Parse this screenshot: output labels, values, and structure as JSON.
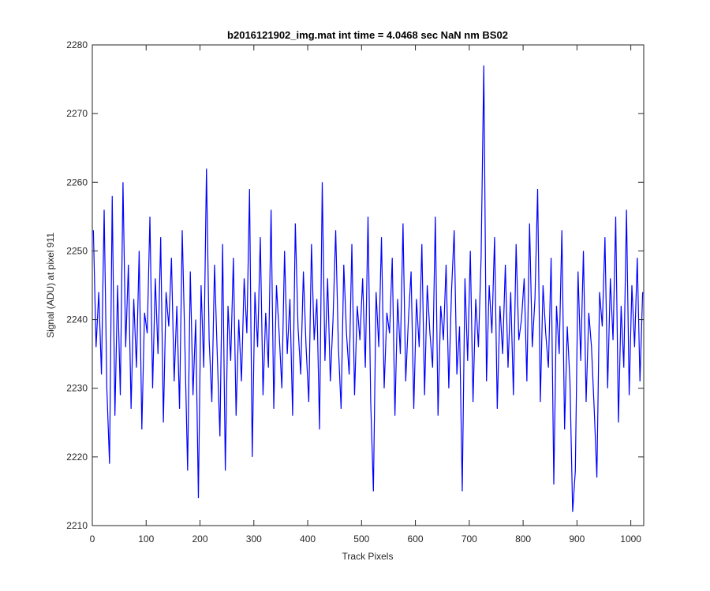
{
  "chart_data": {
    "type": "line",
    "title": "b2016121902_img.mat int time = 4.0468 sec  NaN nm BS02",
    "x_label": "Track Pixels",
    "y_label": "Signal (ADU) at pixel 911",
    "color": "#0000ff",
    "xlim": [
      0,
      1024
    ],
    "xticks": [
      0,
      100,
      200,
      300,
      400,
      500,
      600,
      700,
      800,
      900,
      1000
    ],
    "ylim": [
      2210,
      2280
    ],
    "yticks": [
      2210,
      2220,
      2230,
      2240,
      2250,
      2260,
      2270,
      2280
    ],
    "x": [
      2,
      7,
      12,
      17,
      22,
      27,
      32,
      37,
      42,
      47,
      52,
      57,
      62,
      67,
      72,
      77,
      82,
      87,
      92,
      97,
      102,
      107,
      112,
      117,
      122,
      127,
      132,
      137,
      142,
      147,
      152,
      157,
      162,
      167,
      172,
      177,
      182,
      187,
      192,
      197,
      202,
      207,
      212,
      217,
      222,
      227,
      232,
      237,
      242,
      247,
      252,
      257,
      262,
      267,
      272,
      277,
      282,
      287,
      292,
      297,
      302,
      307,
      312,
      317,
      322,
      327,
      332,
      337,
      342,
      347,
      352,
      357,
      362,
      367,
      372,
      377,
      382,
      387,
      392,
      397,
      402,
      407,
      412,
      417,
      422,
      427,
      432,
      437,
      442,
      447,
      452,
      457,
      462,
      467,
      472,
      477,
      482,
      487,
      492,
      497,
      502,
      507,
      512,
      517,
      522,
      527,
      532,
      537,
      542,
      547,
      552,
      557,
      562,
      567,
      572,
      577,
      582,
      587,
      592,
      597,
      602,
      607,
      612,
      617,
      622,
      627,
      632,
      637,
      642,
      647,
      652,
      657,
      662,
      667,
      672,
      677,
      682,
      687,
      692,
      697,
      702,
      707,
      712,
      717,
      722,
      727,
      732,
      737,
      742,
      747,
      752,
      757,
      762,
      767,
      772,
      777,
      782,
      787,
      792,
      797,
      802,
      807,
      812,
      817,
      822,
      827,
      832,
      837,
      842,
      847,
      852,
      857,
      862,
      867,
      872,
      877,
      882,
      887,
      892,
      897,
      902,
      907,
      912,
      917,
      922,
      927,
      932,
      937,
      942,
      947,
      952,
      957,
      962,
      967,
      972,
      977,
      982,
      987,
      992,
      997,
      1002,
      1007,
      1012,
      1017,
      1022
    ],
    "values": [
      2253,
      2236,
      2244,
      2232,
      2256,
      2230,
      2219,
      2258,
      2226,
      2245,
      2229,
      2260,
      2236,
      2248,
      2227,
      2243,
      2233,
      2250,
      2224,
      2241,
      2238,
      2255,
      2230,
      2246,
      2235,
      2252,
      2225,
      2244,
      2239,
      2249,
      2231,
      2242,
      2227,
      2253,
      2236,
      2218,
      2247,
      2229,
      2240,
      2214,
      2245,
      2233,
      2262,
      2237,
      2228,
      2248,
      2235,
      2223,
      2251,
      2218,
      2242,
      2234,
      2249,
      2226,
      2240,
      2231,
      2246,
      2238,
      2259,
      2220,
      2244,
      2236,
      2252,
      2229,
      2241,
      2233,
      2256,
      2227,
      2245,
      2238,
      2230,
      2250,
      2235,
      2243,
      2226,
      2254,
      2239,
      2232,
      2247,
      2236,
      2228,
      2251,
      2237,
      2243,
      2224,
      2260,
      2234,
      2246,
      2231,
      2240,
      2253,
      2236,
      2227,
      2248,
      2238,
      2232,
      2251,
      2229,
      2242,
      2237,
      2246,
      2233,
      2255,
      2228,
      2215,
      2244,
      2236,
      2252,
      2230,
      2241,
      2238,
      2249,
      2226,
      2243,
      2235,
      2254,
      2231,
      2240,
      2247,
      2227,
      2243,
      2236,
      2251,
      2229,
      2245,
      2238,
      2233,
      2255,
      2226,
      2242,
      2237,
      2248,
      2230,
      2244,
      2253,
      2232,
      2239,
      2215,
      2246,
      2234,
      2250,
      2228,
      2243,
      2236,
      2249,
      2277,
      2231,
      2245,
      2238,
      2252,
      2227,
      2242,
      2235,
      2248,
      2233,
      2244,
      2229,
      2251,
      2237,
      2240,
      2246,
      2231,
      2254,
      2236,
      2243,
      2259,
      2228,
      2245,
      2238,
      2233,
      2249,
      2216,
      2242,
      2235,
      2253,
      2224,
      2239,
      2231,
      2212,
      2218,
      2247,
      2234,
      2250,
      2228,
      2241,
      2236,
      2227,
      2217,
      2244,
      2239,
      2252,
      2230,
      2246,
      2237,
      2255,
      2225,
      2242,
      2233,
      2256,
      2229,
      2245,
      2236,
      2249,
      2231,
      2244
    ]
  }
}
